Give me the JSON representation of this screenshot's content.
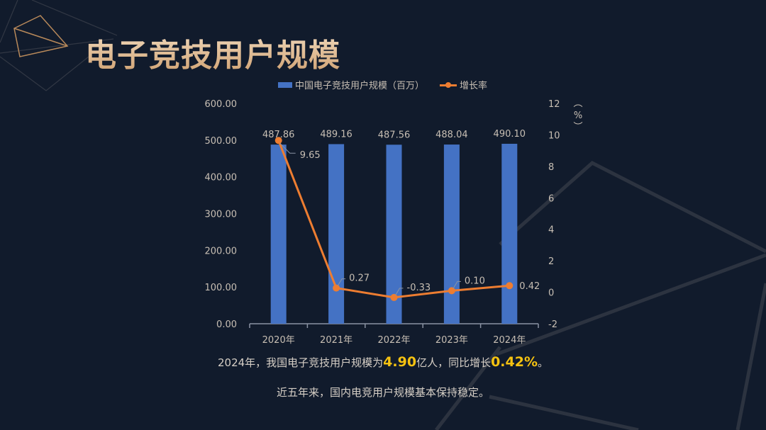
{
  "header": {
    "title": "电子竞技用户规模"
  },
  "legend": {
    "bar_label": "中国电子竞技用户规模（百万）",
    "line_label": "增长率"
  },
  "colors": {
    "bar": "#4472c4",
    "line": "#ed7d31",
    "highlight": "#f5c211",
    "title_gold": "#e3c6a0",
    "background": "#111b2c"
  },
  "axes": {
    "left_ticks": [
      "600.00",
      "500.00",
      "400.00",
      "300.00",
      "200.00",
      "100.00",
      "0.00"
    ],
    "right_ticks": [
      "12",
      "10",
      "8",
      "6",
      "4",
      "2",
      "0",
      "-2"
    ],
    "right_unit": "（%）"
  },
  "chart_data": {
    "type": "bar+line",
    "title": "电子竞技用户规模",
    "categories": [
      "2020年",
      "2021年",
      "2022年",
      "2023年",
      "2024年"
    ],
    "series": [
      {
        "name": "中国电子竞技用户规模（百万）",
        "type": "bar",
        "axis": "left",
        "values": [
          487.86,
          489.16,
          487.56,
          488.04,
          490.1
        ],
        "labels": [
          "487.86",
          "489.16",
          "487.56",
          "488.04",
          "490.10"
        ]
      },
      {
        "name": "增长率",
        "type": "line",
        "axis": "right",
        "values": [
          9.65,
          0.27,
          -0.33,
          0.1,
          0.42
        ],
        "labels": [
          "9.65",
          "0.27",
          "-0.33",
          "0.10",
          "0.42"
        ]
      }
    ],
    "ylim_left": [
      0,
      600
    ],
    "ylim_right": [
      -2,
      12
    ],
    "ylabel_right": "%",
    "legend_position": "top",
    "grid": false
  },
  "summary": {
    "line1_prefix": "2024年，我国电子竞技用户规模为",
    "line1_value1": "4.90",
    "line1_mid": "亿人，同比增长",
    "line1_value2": "0.42%",
    "line1_suffix": "。",
    "line2": "近五年来，国内电竞用户规模基本保持稳定。"
  }
}
